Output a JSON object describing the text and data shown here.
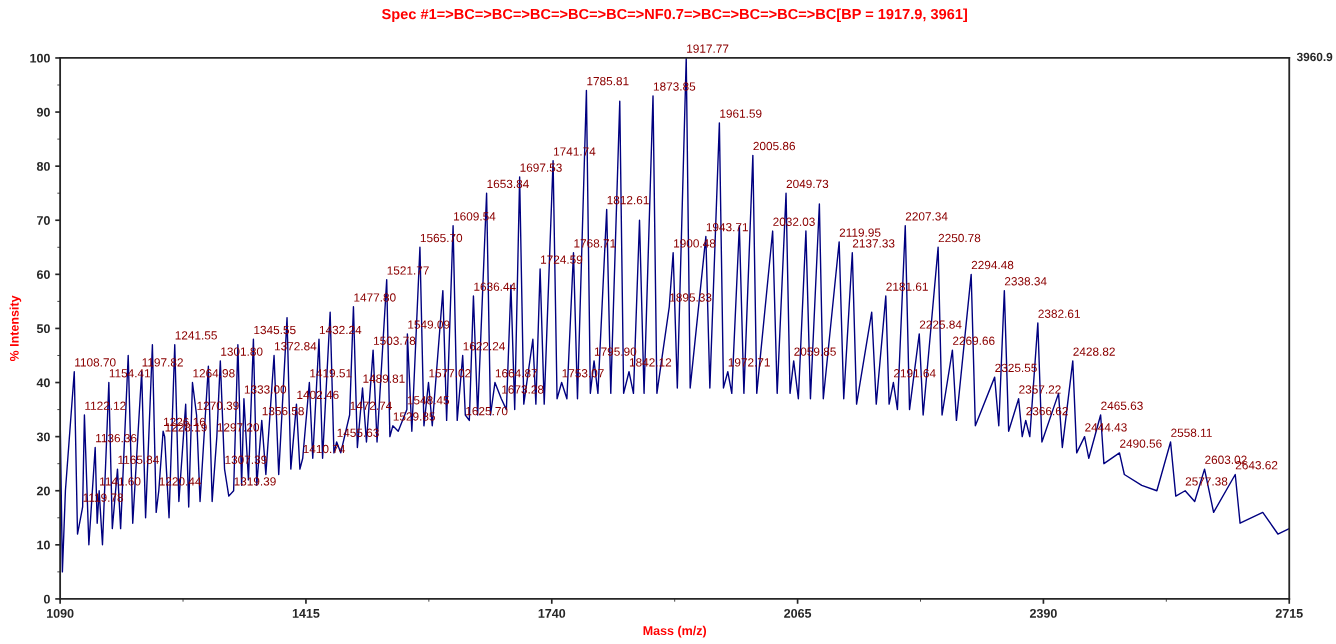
{
  "chart_data": {
    "type": "line",
    "title": "Spec #1=>BC=>BC=>BC=>BC=>BC=>NF0.7=>BC=>BC=>BC=>BC[BP = 1917.9, 3961]",
    "xlabel": "Mass (m/z)",
    "ylabel": "% Intensity",
    "xlim": [
      1090,
      2715
    ],
    "xticks": [
      1090,
      1415,
      1740,
      2065,
      2390,
      2715
    ],
    "ylim": [
      0,
      100
    ],
    "yticks": [
      0,
      10,
      20,
      30,
      40,
      50,
      60,
      70,
      80,
      90,
      100
    ],
    "x": [
      1090,
      1093,
      1097,
      1108.7,
      1113,
      1119.78,
      1122.12,
      1128,
      1136.36,
      1139,
      1141.6,
      1146,
      1154.41,
      1159,
      1165.84,
      1170,
      1180,
      1186,
      1197.82,
      1203,
      1212,
      1217,
      1220.44,
      1226.16,
      1228.19,
      1234,
      1241.55,
      1247,
      1256,
      1260,
      1264.98,
      1270.39,
      1275,
      1286,
      1291,
      1297.2,
      1301.8,
      1307.39,
      1313,
      1319.39,
      1325,
      1330,
      1333,
      1339,
      1345.55,
      1350,
      1356.58,
      1362,
      1372.84,
      1379,
      1390,
      1395,
      1402.46,
      1407,
      1410.74,
      1419.51,
      1424,
      1432.24,
      1437,
      1447,
      1452,
      1455.63,
      1461,
      1472.74,
      1477.8,
      1483,
      1489.81,
      1495,
      1503.78,
      1509,
      1521.77,
      1526,
      1529.85,
      1537,
      1548.45,
      1549.09,
      1555,
      1565.7,
      1571,
      1577.02,
      1582,
      1596,
      1601,
      1609.54,
      1615,
      1622.24,
      1625.7,
      1631,
      1636.44,
      1642,
      1653.84,
      1659,
      1664.87,
      1673.28,
      1680,
      1686,
      1691,
      1697.53,
      1703,
      1715,
      1719,
      1724.59,
      1730,
      1741.74,
      1747,
      1753.07,
      1760,
      1768.71,
      1774,
      1785.81,
      1791,
      1795.9,
      1801,
      1812.61,
      1818,
      1829.9,
      1835,
      1842.12,
      1848,
      1856,
      1862,
      1873.85,
      1879,
      1895.33,
      1900.48,
      1906,
      1917.77,
      1923,
      1943.71,
      1949,
      1961.59,
      1967,
      1972.71,
      1978,
      1988,
      1994,
      2005.86,
      2011,
      2032.03,
      2038,
      2049.73,
      2055,
      2059.85,
      2066,
      2076,
      2082,
      2093.8,
      2099,
      2119.95,
      2126,
      2137.33,
      2143,
      2163,
      2169,
      2181.61,
      2186,
      2191.64,
      2197,
      2207.34,
      2213,
      2225.84,
      2231,
      2250.78,
      2256,
      2269.66,
      2275,
      2294.48,
      2300,
      2325.55,
      2331,
      2338.34,
      2344,
      2357.22,
      2362,
      2366.62,
      2372,
      2382.61,
      2388,
      2410,
      2415,
      2428.82,
      2434,
      2444.43,
      2450,
      2465.63,
      2470,
      2490.56,
      2497,
      2520,
      2540,
      2558.11,
      2565,
      2577.38,
      2590,
      2603.02,
      2615,
      2643.62,
      2650,
      2680,
      2700,
      2715
    ],
    "series": [
      {
        "color": "#000080",
        "values": [
          34,
          5,
          20,
          42,
          12,
          17,
          34,
          10,
          28,
          14,
          20,
          10,
          40,
          13,
          24,
          13,
          45,
          14,
          42,
          15,
          47,
          16,
          20,
          31,
          30,
          15,
          47,
          18,
          36,
          17,
          40,
          34,
          18,
          43,
          18,
          30,
          44,
          24,
          19,
          20,
          47,
          21,
          37,
          22,
          48,
          21,
          33,
          23,
          45,
          23,
          52,
          24,
          36,
          24,
          26,
          40,
          26,
          48,
          26,
          53,
          27,
          29,
          27,
          34,
          54,
          28,
          39,
          29,
          46,
          29,
          59,
          30,
          32,
          31,
          35,
          49,
          31,
          65,
          32,
          40,
          32,
          57,
          33,
          69,
          33,
          45,
          34,
          33,
          56,
          34,
          75,
          34,
          40,
          37,
          35,
          58,
          35,
          78,
          36,
          48,
          36,
          61,
          36,
          81,
          37,
          40,
          37,
          64,
          37,
          94,
          38,
          44,
          38,
          72,
          38,
          92,
          38,
          42,
          38,
          70,
          38,
          93,
          38,
          54,
          64,
          39,
          100,
          39,
          67,
          39,
          88,
          39,
          42,
          38,
          69,
          38,
          82,
          38,
          68,
          38,
          75,
          38,
          44,
          37,
          68,
          37,
          73,
          37,
          66,
          37,
          64,
          36,
          53,
          36,
          56,
          36,
          40,
          35,
          69,
          35,
          49,
          34,
          65,
          34,
          46,
          33,
          60,
          32,
          41,
          32,
          57,
          31,
          37,
          30,
          33,
          30,
          51,
          29,
          38,
          28,
          44,
          27,
          30,
          26,
          34,
          25,
          27,
          23,
          21,
          20,
          29,
          19,
          20,
          18,
          24,
          16,
          23,
          14,
          16,
          12,
          13
        ]
      }
    ],
    "annotations": [
      "3960.9",
      {
        "text": "1108.70",
        "x": 1108.7,
        "y": 42
      },
      {
        "text": "1119.78",
        "x": 1119.78,
        "y": 17
      },
      {
        "text": "1122.12",
        "x": 1122.12,
        "y": 34
      },
      {
        "text": "1136.36",
        "x": 1136.36,
        "y": 28
      },
      {
        "text": "1141.60",
        "x": 1141.6,
        "y": 20
      },
      {
        "text": "1154.41",
        "x": 1154.41,
        "y": 40
      },
      {
        "text": "1165.84",
        "x": 1165.84,
        "y": 24
      },
      {
        "text": "1197.82",
        "x": 1197.82,
        "y": 42
      },
      {
        "text": "1220.44",
        "x": 1220.44,
        "y": 20
      },
      {
        "text": "1226.16",
        "x": 1226.16,
        "y": 31
      },
      {
        "text": "1228.19",
        "x": 1228.19,
        "y": 30
      },
      {
        "text": "1241.55",
        "x": 1241.55,
        "y": 47
      },
      {
        "text": "1264.98",
        "x": 1264.98,
        "y": 40
      },
      {
        "text": "1270.39",
        "x": 1270.39,
        "y": 34
      },
      {
        "text": "1297.20",
        "x": 1297.2,
        "y": 30
      },
      {
        "text": "1301.80",
        "x": 1301.8,
        "y": 44
      },
      {
        "text": "1307.39",
        "x": 1307.39,
        "y": 24
      },
      {
        "text": "1319.39",
        "x": 1319.39,
        "y": 20
      },
      {
        "text": "1333.00",
        "x": 1333.0,
        "y": 37
      },
      {
        "text": "1345.55",
        "x": 1345.55,
        "y": 48
      },
      {
        "text": "1356.58",
        "x": 1356.58,
        "y": 33
      },
      {
        "text": "1372.84",
        "x": 1372.84,
        "y": 45
      },
      {
        "text": "1402.46",
        "x": 1402.46,
        "y": 36
      },
      {
        "text": "1410.74",
        "x": 1410.74,
        "y": 26
      },
      {
        "text": "1419.51",
        "x": 1419.51,
        "y": 40
      },
      {
        "text": "1432.24",
        "x": 1432.24,
        "y": 48
      },
      {
        "text": "1455.63",
        "x": 1455.63,
        "y": 29
      },
      {
        "text": "1472.74",
        "x": 1472.74,
        "y": 34
      },
      {
        "text": "1477.80",
        "x": 1477.8,
        "y": 54
      },
      {
        "text": "1489.81",
        "x": 1489.81,
        "y": 39
      },
      {
        "text": "1503.78",
        "x": 1503.78,
        "y": 46
      },
      {
        "text": "1521.77",
        "x": 1521.77,
        "y": 59
      },
      {
        "text": "1529.85",
        "x": 1529.85,
        "y": 32
      },
      {
        "text": "1548.45",
        "x": 1548.45,
        "y": 35
      },
      {
        "text": "1549.09",
        "x": 1549.09,
        "y": 49
      },
      {
        "text": "1565.70",
        "x": 1565.7,
        "y": 65
      },
      {
        "text": "1577.02",
        "x": 1577.02,
        "y": 40
      },
      {
        "text": "1609.54",
        "x": 1609.54,
        "y": 69
      },
      {
        "text": "1622.24",
        "x": 1622.24,
        "y": 45
      },
      {
        "text": "1625.70",
        "x": 1625.7,
        "y": 33
      },
      {
        "text": "1636.44",
        "x": 1636.44,
        "y": 56
      },
      {
        "text": "1653.84",
        "x": 1653.84,
        "y": 75
      },
      {
        "text": "1664.87",
        "x": 1664.87,
        "y": 40
      },
      {
        "text": "1673.28",
        "x": 1673.28,
        "y": 37
      },
      {
        "text": "1697.53",
        "x": 1697.53,
        "y": 78
      },
      {
        "text": "1724.59",
        "x": 1724.59,
        "y": 61
      },
      {
        "text": "1741.74",
        "x": 1741.74,
        "y": 81
      },
      {
        "text": "1753.07",
        "x": 1753.07,
        "y": 40
      },
      {
        "text": "1768.71",
        "x": 1768.71,
        "y": 64
      },
      {
        "text": "1785.81",
        "x": 1785.81,
        "y": 94
      },
      {
        "text": "1795.90",
        "x": 1795.9,
        "y": 44
      },
      {
        "text": "1812.61",
        "x": 1812.61,
        "y": 72
      },
      {
        "text": "1842.12",
        "x": 1842.12,
        "y": 42
      },
      {
        "text": "1873.85",
        "x": 1873.85,
        "y": 93
      },
      {
        "text": "1895.33",
        "x": 1895.33,
        "y": 54
      },
      {
        "text": "1900.48",
        "x": 1900.48,
        "y": 64
      },
      {
        "text": "1917.77",
        "x": 1917.77,
        "y": 100
      },
      {
        "text": "1943.71",
        "x": 1943.71,
        "y": 67
      },
      {
        "text": "1961.59",
        "x": 1961.59,
        "y": 88
      },
      {
        "text": "1972.71",
        "x": 1972.71,
        "y": 42
      },
      {
        "text": "2005.86",
        "x": 2005.86,
        "y": 82
      },
      {
        "text": "2032.03",
        "x": 2032.03,
        "y": 68
      },
      {
        "text": "2049.73",
        "x": 2049.73,
        "y": 75
      },
      {
        "text": "2059.85",
        "x": 2059.85,
        "y": 44
      },
      {
        "text": "2119.95",
        "x": 2119.95,
        "y": 66
      },
      {
        "text": "2137.33",
        "x": 2137.33,
        "y": 64
      },
      {
        "text": "2181.61",
        "x": 2181.61,
        "y": 56
      },
      {
        "text": "2191.64",
        "x": 2191.64,
        "y": 40
      },
      {
        "text": "2207.34",
        "x": 2207.34,
        "y": 69
      },
      {
        "text": "2225.84",
        "x": 2225.84,
        "y": 49
      },
      {
        "text": "2250.78",
        "x": 2250.78,
        "y": 65
      },
      {
        "text": "2269.66",
        "x": 2269.66,
        "y": 46
      },
      {
        "text": "2294.48",
        "x": 2294.48,
        "y": 60
      },
      {
        "text": "2325.55",
        "x": 2325.55,
        "y": 41
      },
      {
        "text": "2338.34",
        "x": 2338.34,
        "y": 57
      },
      {
        "text": "2357.22",
        "x": 2357.22,
        "y": 37
      },
      {
        "text": "2366.62",
        "x": 2366.62,
        "y": 33
      },
      {
        "text": "2382.61",
        "x": 2382.61,
        "y": 51
      },
      {
        "text": "2428.82",
        "x": 2428.82,
        "y": 44
      },
      {
        "text": "2444.43",
        "x": 2444.43,
        "y": 30
      },
      {
        "text": "2465.63",
        "x": 2465.63,
        "y": 34
      },
      {
        "text": "2490.56",
        "x": 2490.56,
        "y": 27
      },
      {
        "text": "2558.11",
        "x": 2558.11,
        "y": 29
      },
      {
        "text": "2577.38",
        "x": 2577.38,
        "y": 20
      },
      {
        "text": "2603.02",
        "x": 2603.02,
        "y": 24
      },
      {
        "text": "2643.62",
        "x": 2643.62,
        "y": 23
      }
    ]
  }
}
